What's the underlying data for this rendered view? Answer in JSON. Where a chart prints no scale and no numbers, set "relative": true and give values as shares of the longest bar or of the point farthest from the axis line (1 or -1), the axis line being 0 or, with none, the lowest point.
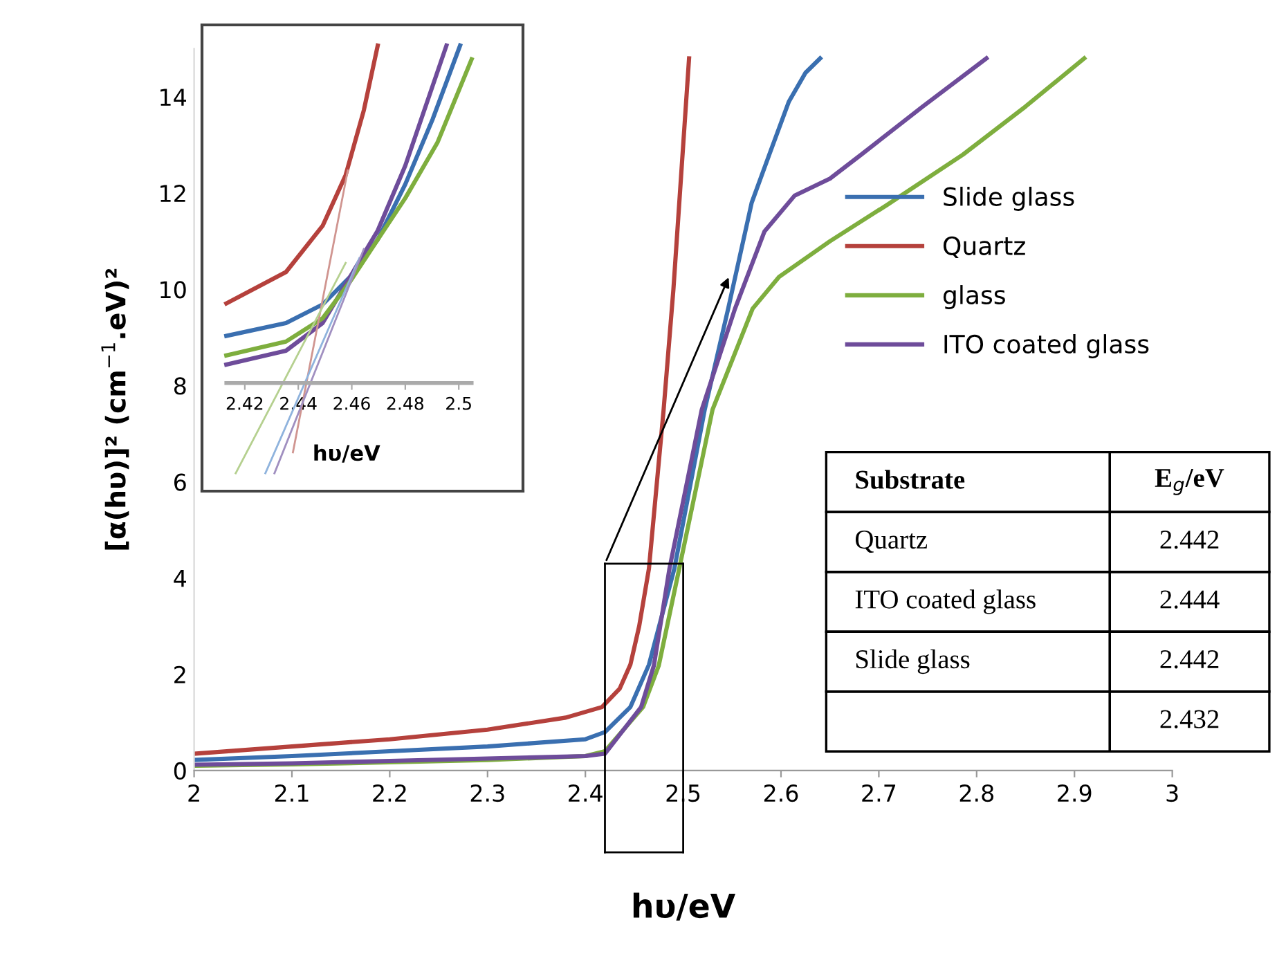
{
  "chart_data": [
    {
      "type": "line",
      "xlabel": "hυ/eV",
      "ylabel": "[α(hυ)]² (cm$^{−1}$.eV)²",
      "xlim": [
        2,
        3
      ],
      "xticks": [
        2,
        2.1,
        2.2,
        2.3,
        2.4,
        2.5,
        2.6,
        2.7,
        2.8,
        2.9,
        3
      ],
      "ylim": [
        0,
        15
      ],
      "yticks": [
        0,
        2,
        4,
        6,
        8,
        10,
        12,
        14
      ],
      "grid": false,
      "legend": "right",
      "marker": "none",
      "line_style": "solid",
      "series": [
        {
          "name": "Slide glass",
          "color": "#3a6fb0",
          "x": [
            2.0,
            2.1,
            2.2,
            2.3,
            2.4,
            2.42,
            2.446,
            2.465,
            2.491,
            2.522,
            2.546,
            2.57,
            2.588,
            2.608,
            2.625,
            2.64
          ],
          "values": [
            0.22,
            0.3,
            0.4,
            0.5,
            0.65,
            0.8,
            1.32,
            2.2,
            4.2,
            7.5,
            9.6,
            11.8,
            12.8,
            13.9,
            14.5,
            14.8
          ]
        },
        {
          "name": "Quartz",
          "color": "#b5413c",
          "x": [
            2.0,
            2.1,
            2.2,
            2.3,
            2.38,
            2.417,
            2.435,
            2.446,
            2.455,
            2.465,
            2.48,
            2.49,
            2.506
          ],
          "values": [
            0.35,
            0.5,
            0.65,
            0.85,
            1.1,
            1.32,
            1.7,
            2.2,
            3.0,
            4.2,
            7.5,
            10,
            14.8
          ]
        },
        {
          "name": "glass",
          "color": "#7eae3e",
          "x": [
            2.0,
            2.1,
            2.2,
            2.3,
            2.4,
            2.42,
            2.459,
            2.475,
            2.496,
            2.53,
            2.571,
            2.598,
            2.65,
            2.708,
            2.786,
            2.85,
            2.91
          ],
          "values": [
            0.1,
            0.13,
            0.17,
            0.22,
            0.3,
            0.4,
            1.32,
            2.18,
            4.2,
            7.5,
            9.6,
            10.26,
            11.0,
            11.75,
            12.8,
            13.8,
            14.8
          ]
        },
        {
          "name": "ITO coated glass",
          "color": "#6e4c9a",
          "x": [
            2.0,
            2.1,
            2.2,
            2.3,
            2.4,
            2.42,
            2.457,
            2.47,
            2.486,
            2.519,
            2.553,
            2.583,
            2.614,
            2.65,
            2.682,
            2.745,
            2.81
          ],
          "values": [
            0.12,
            0.15,
            0.2,
            0.25,
            0.3,
            0.35,
            1.32,
            2.18,
            4.2,
            7.5,
            9.6,
            11.2,
            11.95,
            12.3,
            12.8,
            13.8,
            14.8
          ]
        }
      ]
    },
    {
      "type": "line",
      "xlabel": "hυ/eV",
      "relative": true,
      "tick_labels": "x",
      "xlim": [
        2.404,
        2.524
      ],
      "xticks": [
        2.42,
        2.44,
        2.46,
        2.48,
        2.5
      ],
      "grid": false,
      "marker": "none",
      "line_style": "solid",
      "series": [
        {
          "color": "#b5413c",
          "x": [
            2.4131,
            2.4354,
            2.4491,
            2.4577,
            2.4645,
            2.4697
          ],
          "values": [
            0.236,
            0.329,
            0.466,
            0.616,
            0.808,
            1
          ]
        },
        {
          "color": "#3a6fb0",
          "x": [
            2.4131,
            2.4354,
            2.4491,
            2.4594,
            2.4697,
            2.48,
            2.4902,
            2.5005
          ],
          "values": [
            0.14,
            0.178,
            0.233,
            0.315,
            0.425,
            0.589,
            0.781,
            1
          ]
        },
        {
          "color": "#6e4c9a",
          "x": [
            2.4131,
            2.4354,
            2.4491,
            2.4594,
            2.4697,
            2.48,
            2.4954
          ],
          "values": [
            0.055,
            0.096,
            0.178,
            0.315,
            0.452,
            0.644,
            1
          ]
        },
        {
          "color": "#7eae3e",
          "x": [
            2.4131,
            2.4354,
            2.4491,
            2.4594,
            2.4697,
            2.48,
            2.492,
            2.5048
          ],
          "values": [
            0.082,
            0.123,
            0.192,
            0.301,
            0.425,
            0.548,
            0.712,
            0.959
          ]
        },
        {
          "color": "#d09590",
          "x": [
            2.438,
            2.4585
          ],
          "values": [
            -0.205,
            0.63
          ]
        },
        {
          "color": "#8fb3dd",
          "x": [
            2.4277,
            2.4628
          ],
          "values": [
            -0.267,
            0.37
          ]
        },
        {
          "color": "#a08fc0",
          "x": [
            2.4311,
            2.4645
          ],
          "values": [
            -0.267,
            0.397
          ]
        },
        {
          "color": "#b5d08f",
          "x": [
            2.4166,
            2.4577
          ],
          "values": [
            -0.267,
            0.356
          ]
        }
      ]
    },
    {
      "type": "other",
      "annotations": [
        "Substrate",
        "E$_{g}$/eV"
      ],
      "data_labels": true,
      "categories": [
        "Quartz",
        "ITO coated glass",
        "Slide glass",
        null
      ],
      "values": [
        2.442,
        2.444,
        2.442,
        2.432
      ]
    }
  ]
}
